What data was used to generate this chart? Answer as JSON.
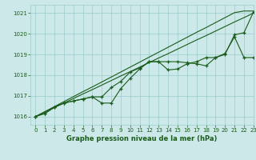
{
  "background_color": "#cce8e8",
  "grid_color": "#99cccc",
  "line_color": "#1a5c1a",
  "title": "Graphe pression niveau de la mer (hPa)",
  "xlim": [
    -0.5,
    23
  ],
  "ylim": [
    1015.6,
    1021.4
  ],
  "yticks": [
    1016,
    1017,
    1018,
    1019,
    1020,
    1021
  ],
  "xticks": [
    0,
    1,
    2,
    3,
    4,
    5,
    6,
    7,
    8,
    9,
    10,
    11,
    12,
    13,
    14,
    15,
    16,
    17,
    18,
    19,
    20,
    21,
    22,
    23
  ],
  "trend1": [
    1016.0,
    1016.22,
    1016.44,
    1016.65,
    1016.87,
    1017.09,
    1017.3,
    1017.52,
    1017.74,
    1017.96,
    1018.17,
    1018.39,
    1018.61,
    1018.83,
    1019.04,
    1019.26,
    1019.48,
    1019.7,
    1019.91,
    1020.13,
    1020.35,
    1020.57,
    1020.78,
    1021.0
  ],
  "trend2": [
    1016.0,
    1016.24,
    1016.48,
    1016.72,
    1016.96,
    1017.2,
    1017.43,
    1017.67,
    1017.91,
    1018.15,
    1018.39,
    1018.63,
    1018.87,
    1019.11,
    1019.35,
    1019.59,
    1019.83,
    1020.07,
    1020.3,
    1020.54,
    1020.78,
    1021.02,
    1021.1,
    1021.1
  ],
  "measured1": [
    1016.0,
    1016.15,
    1016.45,
    1016.65,
    1016.75,
    1016.85,
    1016.95,
    1016.65,
    1016.65,
    1017.35,
    1017.85,
    1018.3,
    1018.65,
    1018.65,
    1018.25,
    1018.3,
    1018.55,
    1018.65,
    1018.85,
    1018.85,
    1019.05,
    1019.85,
    1018.85,
    1018.85
  ],
  "measured2": [
    1016.0,
    1016.15,
    1016.45,
    1016.65,
    1016.75,
    1016.85,
    1016.95,
    1016.95,
    1017.4,
    1017.7,
    1018.15,
    1018.35,
    1018.65,
    1018.65,
    1018.65,
    1018.65,
    1018.6,
    1018.55,
    1018.45,
    1018.85,
    1019.0,
    1019.95,
    1020.05,
    1021.05
  ]
}
